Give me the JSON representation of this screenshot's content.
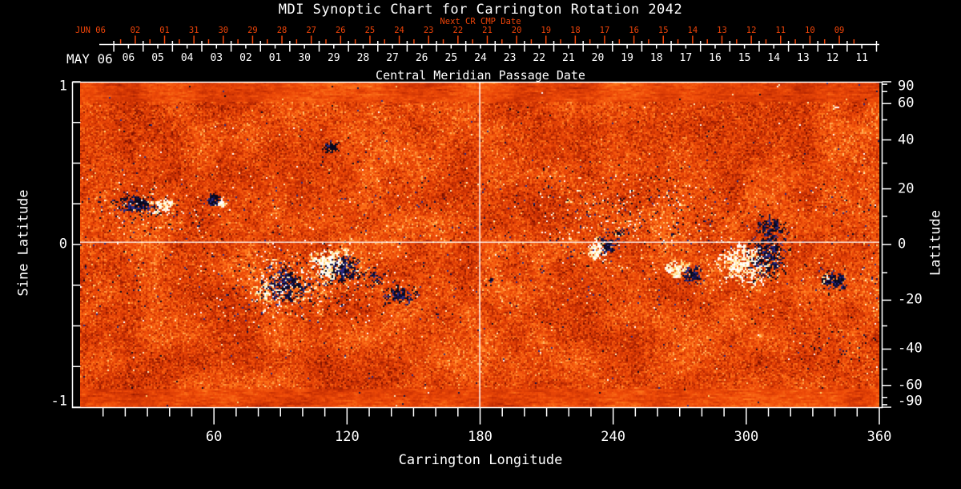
{
  "page": {
    "background": "#000000"
  },
  "chart_data": {
    "type": "heatmap",
    "title": "MDI Synoptic Chart for Carrington Rotation 2042",
    "top_axis_next_cr": {
      "title": "Next CR CMP Date",
      "month_label": "JUN 06",
      "dates": [
        "02",
        "01",
        "31",
        "30",
        "29",
        "28",
        "27",
        "26",
        "25",
        "24",
        "23",
        "22",
        "21",
        "20",
        "19",
        "18",
        "17",
        "16",
        "15",
        "14",
        "13",
        "12",
        "11",
        "10",
        "09"
      ]
    },
    "top_axis_cmp": {
      "title": "Central Meridian Passage Date",
      "month_label": "MAY 06",
      "dates": [
        "06",
        "05",
        "04",
        "03",
        "02",
        "01",
        "30",
        "29",
        "28",
        "27",
        "26",
        "25",
        "24",
        "23",
        "22",
        "21",
        "20",
        "19",
        "18",
        "17",
        "16",
        "15",
        "14",
        "13",
        "12",
        "11"
      ]
    },
    "x_axis": {
      "label": "Carrington Longitude",
      "range": [
        0,
        360
      ],
      "major_ticks": [
        60,
        120,
        180,
        240,
        300,
        360
      ],
      "minor_step_deg": 10
    },
    "y_axis_left": {
      "label": "Sine Latitude",
      "range": [
        1,
        -1
      ],
      "labeled_ticks": [
        "1",
        "0",
        "-1"
      ],
      "labeled_values": [
        1,
        0,
        -1
      ],
      "minor_step": 0.25
    },
    "y_axis_right": {
      "label": "Latitude",
      "scale": "sine",
      "labeled_ticks": [
        90,
        60,
        40,
        20,
        0,
        -20,
        -40,
        -60,
        -90
      ],
      "minor_ticks": [
        80,
        70,
        50,
        30,
        10,
        -10,
        -30,
        -50,
        -70,
        -80
      ]
    },
    "crosshair": {
      "longitude": 180,
      "latitude": 0
    },
    "colors": {
      "background": "#000000",
      "axis": "#ffffff",
      "next_cr_axis": "#ee4409",
      "positive_polarity": "#ffffff",
      "negative_polarity": "#05051e",
      "crosshair": "#ffffff"
    },
    "palette": [
      [
        0.0,
        118,
        14,
        0
      ],
      [
        0.3,
        196,
        45,
        2
      ],
      [
        0.55,
        238,
        74,
        8
      ],
      [
        0.8,
        255,
        120,
        28
      ],
      [
        1.0,
        255,
        198,
        112
      ]
    ],
    "active_regions": [
      {
        "lon": 24.9,
        "slat": 0.256,
        "pol": "neg",
        "rx": 4.5,
        "ry": 0.03,
        "n": 80,
        "kind": "core"
      },
      {
        "lon": 30.3,
        "slat": 0.231,
        "pol": "neg",
        "rx": 7.0,
        "ry": 0.035,
        "n": 45,
        "kind": "spray"
      },
      {
        "lon": 36.8,
        "slat": 0.246,
        "pol": "pos",
        "rx": 2.5,
        "ry": 0.02,
        "n": 45,
        "kind": "core"
      },
      {
        "lon": 59.9,
        "slat": 0.286,
        "pol": "neg",
        "rx": 1.8,
        "ry": 0.018,
        "n": 60,
        "kind": "core"
      },
      {
        "lon": 63.5,
        "slat": 0.266,
        "pol": "pos",
        "rx": 1.2,
        "ry": 0.012,
        "n": 15,
        "kind": "core"
      },
      {
        "lon": 112.3,
        "slat": 0.606,
        "pol": "neg",
        "rx": 1.6,
        "ry": 0.016,
        "n": 40,
        "kind": "core"
      },
      {
        "lon": 84.5,
        "slat": -0.281,
        "pol": "pos",
        "rx": 4.0,
        "ry": 0.05,
        "n": 80,
        "kind": "core"
      },
      {
        "lon": 92.4,
        "slat": -0.228,
        "pol": "neg",
        "rx": 4.5,
        "ry": 0.055,
        "n": 170,
        "kind": "core"
      },
      {
        "lon": 112.3,
        "slat": -0.113,
        "pol": "pos",
        "rx": 4.5,
        "ry": 0.05,
        "n": 180,
        "kind": "core"
      },
      {
        "lon": 119.5,
        "slat": -0.148,
        "pol": "neg",
        "rx": 3.5,
        "ry": 0.045,
        "n": 110,
        "kind": "core"
      },
      {
        "lon": 133.2,
        "slat": -0.197,
        "pol": "neg",
        "rx": 2.5,
        "ry": 0.03,
        "n": 40,
        "kind": "spray"
      },
      {
        "lon": 143.0,
        "slat": -0.305,
        "pol": "neg",
        "rx": 3.5,
        "ry": 0.03,
        "n": 75,
        "kind": "core"
      },
      {
        "lon": 100.0,
        "slat": -0.22,
        "pol": "pos",
        "rx": 22.0,
        "ry": 0.13,
        "n": 260,
        "kind": "plage"
      },
      {
        "lon": 100.0,
        "slat": -0.25,
        "pol": "neg",
        "rx": 22.0,
        "ry": 0.12,
        "n": 150,
        "kind": "spray"
      },
      {
        "lon": 236.8,
        "slat": 0.0,
        "pol": "neg",
        "rx": 2.0,
        "ry": 0.025,
        "n": 60,
        "kind": "core"
      },
      {
        "lon": 232.5,
        "slat": -0.025,
        "pol": "pos",
        "rx": 2.5,
        "ry": 0.03,
        "n": 60,
        "kind": "core"
      },
      {
        "lon": 242.3,
        "slat": 0.084,
        "pol": "neg",
        "rx": 1.5,
        "ry": 0.02,
        "n": 20,
        "kind": "spray"
      },
      {
        "lon": 269.0,
        "slat": -0.153,
        "pol": "pos",
        "rx": 2.8,
        "ry": 0.03,
        "n": 70,
        "kind": "core"
      },
      {
        "lon": 275.1,
        "slat": -0.177,
        "pol": "neg",
        "rx": 2.2,
        "ry": 0.028,
        "n": 60,
        "kind": "core"
      },
      {
        "lon": 298.9,
        "slat": -0.108,
        "pol": "pos",
        "rx": 5.0,
        "ry": 0.06,
        "n": 210,
        "kind": "core"
      },
      {
        "lon": 309.7,
        "slat": -0.07,
        "pol": "neg",
        "rx": 4.5,
        "ry": 0.06,
        "n": 170,
        "kind": "core"
      },
      {
        "lon": 311.2,
        "slat": 0.103,
        "pol": "neg",
        "rx": 3.0,
        "ry": 0.045,
        "n": 80,
        "kind": "core"
      },
      {
        "lon": 300.0,
        "slat": -0.12,
        "pol": "pos",
        "rx": 10.0,
        "ry": 0.09,
        "n": 120,
        "kind": "plage"
      },
      {
        "lon": 339.4,
        "slat": -0.212,
        "pol": "neg",
        "rx": 3.0,
        "ry": 0.03,
        "n": 70,
        "kind": "core"
      },
      {
        "lon": 335.0,
        "slat": -0.197,
        "pol": "pos",
        "rx": 1.5,
        "ry": 0.02,
        "n": 15,
        "kind": "plage"
      },
      {
        "lon": 245.0,
        "slat": 0.2,
        "pol": "pos",
        "rx": 25.0,
        "ry": 0.15,
        "n": 150,
        "kind": "plage"
      },
      {
        "lon": 245.0,
        "slat": 0.2,
        "pol": "neg",
        "rx": 25.0,
        "ry": 0.15,
        "n": 120,
        "kind": "spray"
      },
      {
        "lon": 35.0,
        "slat": 0.25,
        "pol": "pos",
        "rx": 18.0,
        "ry": 0.12,
        "n": 60,
        "kind": "plage"
      },
      {
        "lon": 28.0,
        "slat": 0.25,
        "pol": "neg",
        "rx": 18.0,
        "ry": 0.1,
        "n": 60,
        "kind": "spray"
      },
      {
        "lon": 184.5,
        "slat": -0.222,
        "pol": "neg",
        "rx": 1.2,
        "ry": 0.015,
        "n": 10,
        "kind": "spray"
      },
      {
        "lon": 342.0,
        "slat": -0.62,
        "pol": "neg",
        "rx": 12.0,
        "ry": 0.07,
        "n": 35,
        "kind": "spray"
      },
      {
        "lon": 340.0,
        "slat": 0.85,
        "pol": "pos",
        "rx": 1.0,
        "ry": 0.01,
        "n": 6,
        "kind": "plage"
      }
    ]
  }
}
